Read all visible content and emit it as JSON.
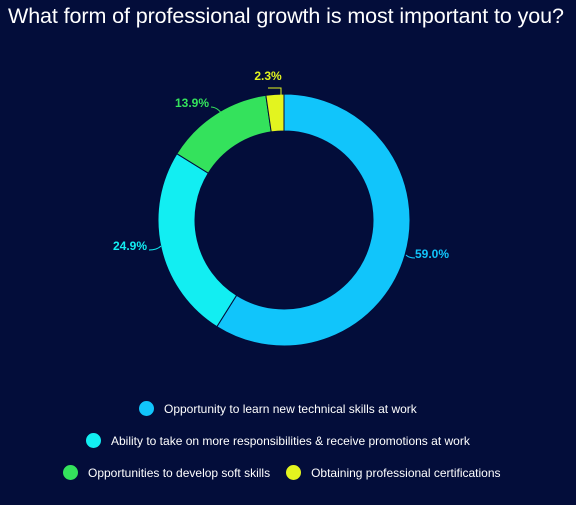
{
  "title": "What form of professional growth is most important to you?",
  "colors": {
    "background": "#030d3a",
    "stroke": "#030d3a"
  },
  "chart_data": {
    "type": "pie",
    "donut": true,
    "title": "What form of professional growth is most important to you?",
    "legend_placement": "bottom",
    "slices": [
      {
        "name": "Opportunity to learn new technical skills at work",
        "value": 59.0,
        "label": "59.0%",
        "color": "#11c5fb"
      },
      {
        "name": "Ability to take on more responsibilities & receive promotions at work",
        "value": 24.9,
        "label": "24.9%",
        "color": "#12eef2"
      },
      {
        "name": "Opportunities to develop soft skills",
        "value": 13.9,
        "label": "13.9%",
        "color": "#34e25c"
      },
      {
        "name": "Obtaining professional certifications",
        "value": 2.3,
        "label": "2.3%",
        "color": "#e3f41f"
      }
    ]
  }
}
